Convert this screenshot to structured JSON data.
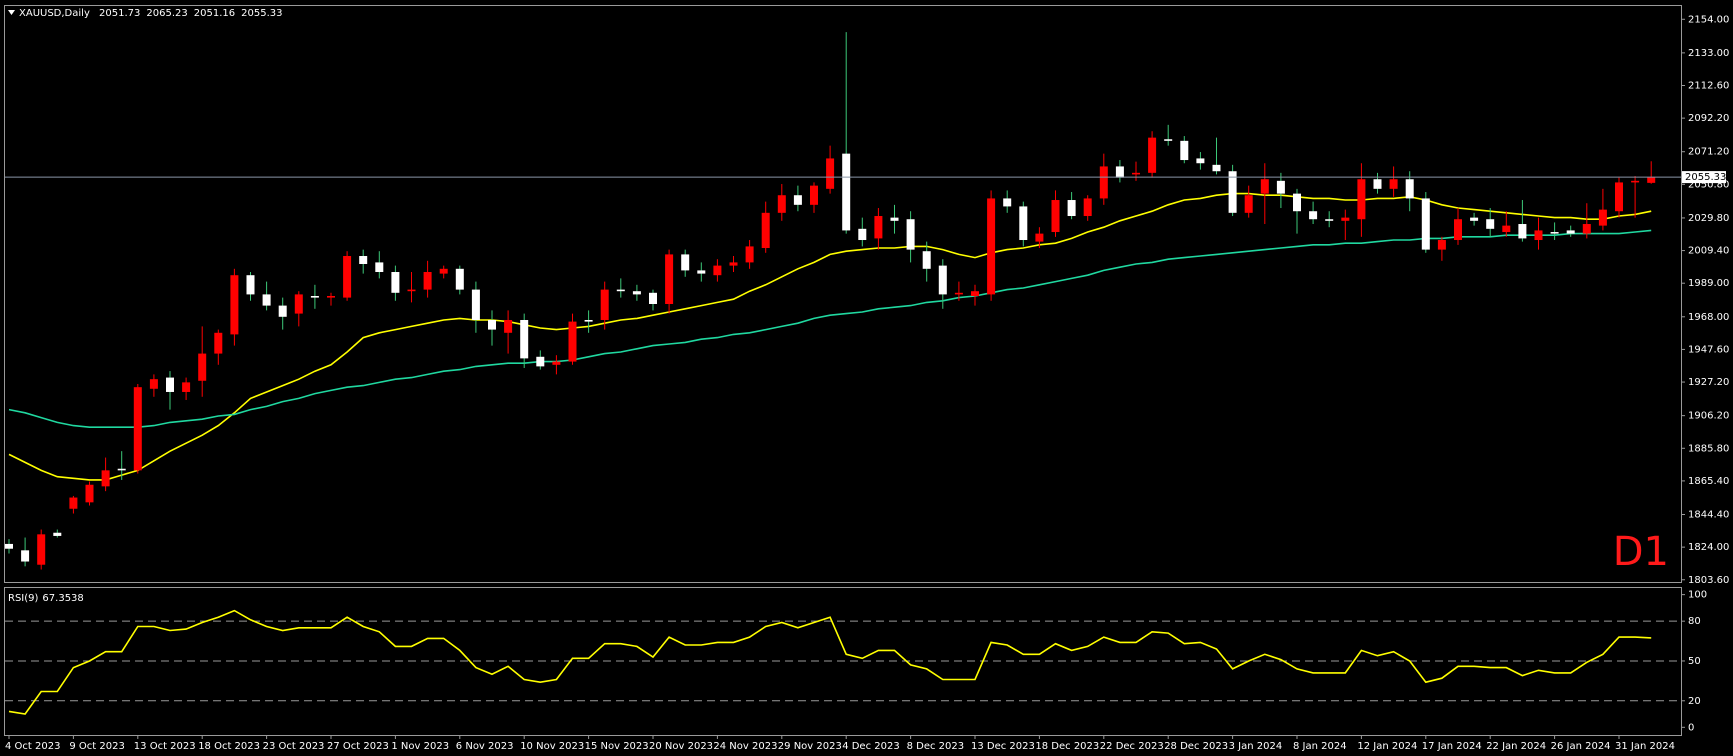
{
  "chart_data": [
    {
      "type": "candlestick",
      "title": "XAUUSD,Daily",
      "annotation": "D1",
      "categories": [
        "4 Oct 2023",
        null,
        null,
        null,
        "9 Oct 2023",
        null,
        null,
        null,
        "13 Oct 2023",
        null,
        null,
        null,
        "18 Oct 2023",
        null,
        null,
        null,
        "23 Oct 2023",
        null,
        null,
        null,
        "27 Oct 2023",
        null,
        null,
        null,
        "1 Nov 2023",
        null,
        null,
        null,
        "6 Nov 2023",
        null,
        null,
        null,
        "10 Nov 2023",
        null,
        null,
        null,
        "15 Nov 2023",
        null,
        null,
        null,
        "20 Nov 2023",
        null,
        null,
        null,
        "24 Nov 2023",
        null,
        null,
        null,
        "29 Nov 2023",
        null,
        null,
        null,
        "4 Dec 2023",
        null,
        null,
        null,
        "8 Dec 2023",
        null,
        null,
        null,
        "13 Dec 2023",
        null,
        null,
        null,
        "18 Dec 2023",
        null,
        null,
        null,
        "22 Dec 2023",
        null,
        null,
        null,
        "28 Dec 2023",
        null,
        null,
        null,
        "3 Jan 2024",
        null,
        null,
        null,
        "8 Jan 2024",
        null,
        null,
        null,
        "12 Jan 2024",
        null,
        null,
        null,
        "17 Jan 2024",
        null,
        null,
        null,
        "22 Jan 2024",
        null,
        null,
        null,
        "26 Jan 2024",
        null,
        null,
        null,
        "31 Jan 2024",
        null,
        null
      ],
      "open": [
        1826,
        1822,
        1813,
        1833,
        1848,
        1852,
        1862,
        1873,
        1872,
        1923,
        1930,
        1921,
        1928,
        1945,
        1957,
        1994,
        1982,
        1975,
        1970,
        1981,
        1980,
        1980,
        2006,
        2002,
        1996,
        1984,
        1985,
        1995,
        1998,
        1985,
        1966,
        1958,
        1966,
        1943,
        1938,
        1940,
        1966,
        1966,
        1985,
        1984,
        1983,
        1976,
        2007,
        1997,
        1994,
        2000,
        2002,
        2011,
        2033,
        2044,
        2038,
        2048,
        2070,
        2023,
        2017,
        2030,
        2029,
        2009,
        2000,
        1982,
        1981,
        1982,
        2042,
        2037,
        2015,
        2021,
        2041,
        2031,
        2042,
        2062,
        2057,
        2058,
        2079,
        2078,
        2067,
        2063,
        2059,
        2033,
        2045,
        2053,
        2045,
        2034,
        2029,
        2028,
        2029,
        2054,
        2048,
        2054,
        2042,
        2010,
        2016,
        2030,
        2029,
        2021,
        2026,
        2016,
        2021,
        2022,
        2020,
        2025,
        2034,
        2052,
        2051.73
      ],
      "high": [
        1829,
        1830,
        1835,
        1835,
        1856,
        1865,
        1880,
        1884,
        1926,
        1932,
        1934,
        1930,
        1962,
        1960,
        1998,
        1996,
        1990,
        1980,
        1984,
        1988,
        1983,
        2009,
        2010,
        2009,
        2000,
        1996,
        2003,
        2000,
        2000,
        1990,
        1972,
        1972,
        1970,
        1947,
        1944,
        1970,
        1972,
        1990,
        1992,
        1988,
        1985,
        2010,
        2010,
        2002,
        2004,
        2006,
        2016,
        2040,
        2051,
        2050,
        2052,
        2075,
        2146,
        2030,
        2036,
        2038,
        2034,
        2015,
        2004,
        1990,
        1988,
        2047,
        2047,
        2040,
        2024,
        2047,
        2046,
        2044,
        2070,
        2066,
        2065,
        2084,
        2088,
        2081,
        2071,
        2080,
        2063,
        2050,
        2064,
        2058,
        2048,
        2040,
        2034,
        2035,
        2064,
        2058,
        2062,
        2059,
        2046,
        2018,
        2036,
        2033,
        2036,
        2034,
        2041,
        2030,
        2027,
        2025,
        2039,
        2048,
        2055,
        2056,
        2065.23
      ],
      "low": [
        1820,
        1812,
        1810,
        1830,
        1845,
        1850,
        1859,
        1866,
        1870,
        1918,
        1910,
        1916,
        1918,
        1938,
        1950,
        1978,
        1972,
        1960,
        1962,
        1973,
        1975,
        1978,
        1995,
        1992,
        1978,
        1977,
        1980,
        1992,
        1982,
        1958,
        1950,
        1945,
        1936,
        1935,
        1932,
        1938,
        1958,
        1960,
        1980,
        1978,
        1972,
        1970,
        1993,
        1990,
        1990,
        1996,
        1998,
        2008,
        2028,
        2034,
        2033,
        2045,
        2020,
        2012,
        2010,
        2020,
        2002,
        1990,
        1973,
        1978,
        1975,
        1978,
        2033,
        2012,
        2011,
        2018,
        2029,
        2028,
        2038,
        2052,
        2053,
        2055,
        2075,
        2064,
        2060,
        2057,
        2031,
        2030,
        2026,
        2036,
        2020,
        2026,
        2024,
        2016,
        2018,
        2045,
        2043,
        2034,
        2008,
        2003,
        2013,
        2025,
        2018,
        2018,
        2015,
        2010,
        2016,
        2018,
        2017,
        2022,
        2030,
        2030,
        2051.16
      ],
      "close": [
        1823,
        1815,
        1832,
        1831,
        1855,
        1863,
        1872,
        1872,
        1924,
        1929,
        1921,
        1927,
        1945,
        1958,
        1994,
        1982,
        1975,
        1968,
        1982,
        1980,
        1981,
        2006,
        2001,
        1996,
        1983,
        1985,
        1996,
        1998,
        1985,
        1966,
        1960,
        1966,
        1942,
        1937,
        1940,
        1965,
        1965,
        1985,
        1984,
        1982,
        1976,
        2007,
        1997,
        1995,
        2000,
        2002,
        2012,
        2033,
        2044,
        2038,
        2050,
        2067,
        2022,
        2016,
        2031,
        2028,
        2010,
        1998,
        1982,
        1983,
        1984,
        2042,
        2037,
        2016,
        2020,
        2041,
        2031,
        2042,
        2062,
        2055,
        2058,
        2080,
        2078,
        2066,
        2064,
        2059,
        2033,
        2044,
        2054,
        2045,
        2034,
        2029,
        2028,
        2030,
        2054,
        2048,
        2054,
        2042,
        2010,
        2016,
        2029,
        2028,
        2023,
        2025,
        2017,
        2022,
        2020,
        2020,
        2026,
        2035,
        2052,
        2053,
        2055.33
      ],
      "colors": {
        "up": "#ff0000",
        "down": "#ffffff",
        "up_wick": "#ff0000",
        "down_wick": "#3cc878",
        "last_price": "#8a97a8"
      },
      "series": [
        {
          "color": "#ffff00",
          "values": [
            1882,
            1877,
            1872,
            1868,
            1867,
            1866,
            1866,
            1869,
            1872,
            1878,
            1884,
            1889,
            1894,
            1900,
            1908,
            1917,
            1921,
            1925,
            1929,
            1934,
            1938,
            1946,
            1955,
            1958,
            1960,
            1962,
            1964,
            1966,
            1967,
            1966,
            1966,
            1965,
            1963,
            1961,
            1960,
            1961,
            1962,
            1964,
            1966,
            1967,
            1969,
            1971,
            1973,
            1975,
            1977,
            1979,
            1984,
            1988,
            1993,
            1998,
            2002,
            2007,
            2009,
            2010,
            2011,
            2011,
            2012,
            2012,
            2010,
            2007,
            2005,
            2008,
            2010,
            2011,
            2013,
            2014,
            2017,
            2021,
            2024,
            2028,
            2031,
            2034,
            2038,
            2041,
            2042,
            2044,
            2045,
            2045,
            2044,
            2044,
            2043,
            2042,
            2042,
            2041,
            2041,
            2042,
            2042,
            2043,
            2041,
            2038,
            2036,
            2035,
            2034,
            2033,
            2032,
            2031,
            2030,
            2030,
            2029,
            2029,
            2031,
            2032,
            2034
          ]
        },
        {
          "color": "#20d8a0",
          "values": [
            1910,
            1908,
            1905,
            1902,
            1900,
            1899,
            1899,
            1899,
            1899,
            1900,
            1902,
            1903,
            1904,
            1906,
            1907,
            1910,
            1912,
            1915,
            1917,
            1920,
            1922,
            1924,
            1925,
            1927,
            1929,
            1930,
            1932,
            1934,
            1935,
            1937,
            1938,
            1939,
            1939,
            1940,
            1940,
            1941,
            1943,
            1945,
            1946,
            1948,
            1950,
            1951,
            1952,
            1954,
            1955,
            1957,
            1958,
            1960,
            1962,
            1964,
            1967,
            1969,
            1970,
            1971,
            1973,
            1974,
            1975,
            1977,
            1978,
            1980,
            1981,
            1983,
            1985,
            1986,
            1988,
            1990,
            1992,
            1994,
            1997,
            1999,
            2001,
            2002,
            2004,
            2005,
            2006,
            2007,
            2008,
            2009,
            2010,
            2011,
            2012,
            2013,
            2013,
            2014,
            2014,
            2015,
            2016,
            2016,
            2017,
            2017,
            2018,
            2018,
            2018,
            2019,
            2019,
            2019,
            2019,
            2020,
            2020,
            2020,
            2020,
            2021,
            2022
          ]
        }
      ],
      "ylim": [
        1802.2,
        2162.3
      ],
      "yticks": [
        {
          "value": 2154,
          "label": "2154.00"
        },
        {
          "value": 2133,
          "label": "2133.00"
        },
        {
          "value": 2112.6,
          "label": "2112.60"
        },
        {
          "value": 2092.2,
          "label": "2092.20"
        },
        {
          "value": 2071.2,
          "label": "2071.20"
        },
        {
          "value": 2050.8,
          "label": "2050.80"
        },
        {
          "value": 2029.8,
          "label": "2029.80"
        },
        {
          "value": 2009.4,
          "label": "2009.40"
        },
        {
          "value": 1989,
          "label": "1989.00"
        },
        {
          "value": 1968,
          "label": "1968.00"
        },
        {
          "value": 1947.6,
          "label": "1947.60"
        },
        {
          "value": 1927.2,
          "label": "1927.20"
        },
        {
          "value": 1906.2,
          "label": "1906.20"
        },
        {
          "value": 1885.8,
          "label": "1885.80"
        },
        {
          "value": 1865.4,
          "label": "1865.40"
        },
        {
          "value": 1844.4,
          "label": "1844.40"
        },
        {
          "value": 1824,
          "label": "1824.00"
        },
        {
          "value": 1803.6,
          "label": "1803.60"
        }
      ]
    },
    {
      "type": "line",
      "title": "RSI(9)",
      "series": [
        {
          "color": "#ffff00",
          "values": [
            12,
            10,
            27,
            27,
            45,
            50,
            57,
            57,
            76,
            76,
            73,
            74,
            79,
            83,
            88,
            81,
            76,
            73,
            75,
            75,
            75,
            83,
            76,
            72,
            61,
            61,
            67,
            67,
            58,
            45,
            40,
            46,
            36,
            34,
            36,
            52,
            52,
            63,
            63,
            61,
            53,
            68,
            62,
            62,
            64,
            64,
            68,
            76,
            79,
            75,
            79,
            83,
            55,
            52,
            58,
            58,
            47,
            44,
            36,
            36,
            36,
            64,
            62,
            55,
            55,
            63,
            58,
            61,
            68,
            64,
            64,
            72,
            71,
            63,
            64,
            59,
            44,
            50,
            55,
            51,
            44,
            41,
            41,
            41,
            58,
            54,
            57,
            50,
            34,
            37,
            46,
            46,
            45,
            45,
            39,
            43,
            41,
            41,
            49,
            55,
            68,
            68,
            67.3538
          ]
        }
      ],
      "levels": [
        80,
        50,
        20
      ],
      "level_color": "#9a9a9a",
      "ylim": [
        -5.8,
        105
      ],
      "yticks": [
        100,
        80,
        50,
        20,
        0
      ]
    }
  ]
}
